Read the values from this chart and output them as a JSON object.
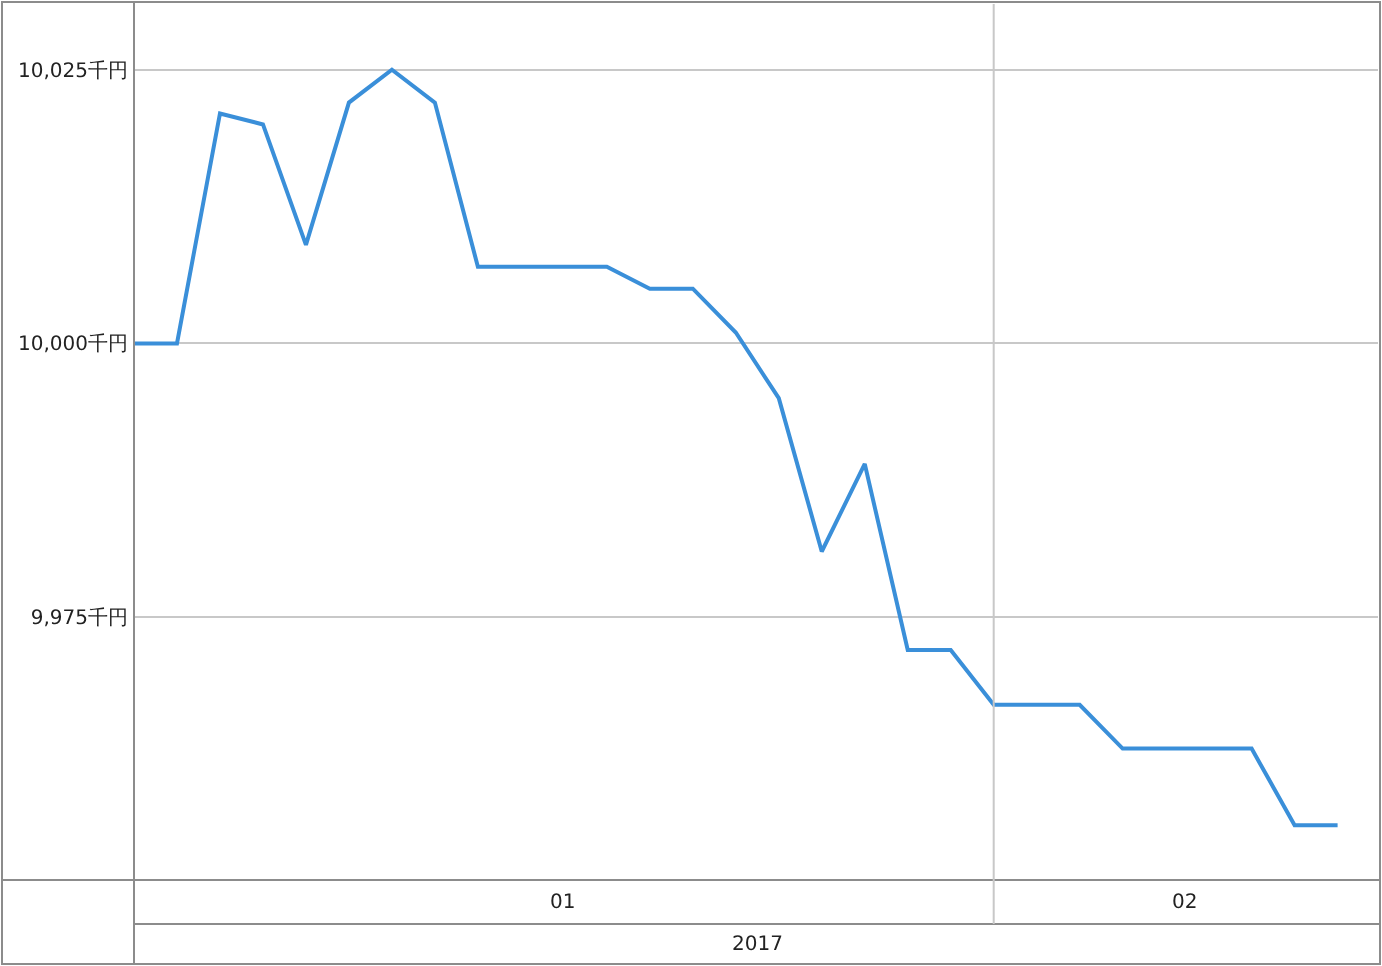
{
  "chart_data": {
    "type": "line",
    "categories": [
      null,
      null,
      null,
      null,
      null,
      null,
      null,
      null,
      null,
      null,
      null,
      null,
      null,
      null,
      null,
      null,
      null,
      null,
      null,
      null,
      null,
      null,
      null,
      null,
      null,
      null,
      null,
      null,
      null
    ],
    "series": [
      {
        "color": "#3a8fd9",
        "values": [
          10000,
          10000,
          10021,
          10020,
          10009,
          10022,
          10025,
          10022,
          10007,
          10007,
          10007,
          10007,
          10005,
          10005,
          10001,
          9995,
          9981,
          9989,
          9972,
          9972,
          9967,
          9967,
          9967,
          9963,
          9963,
          9963,
          9963,
          9956,
          9956
        ]
      }
    ],
    "ylim": [
      9951,
      10031
    ],
    "yticks": [
      {
        "value": 9975,
        "label": "9,975千円"
      },
      {
        "value": 10000,
        "label": "10,000千円"
      },
      {
        "value": 10025,
        "label": "10,025千円"
      }
    ],
    "xlabel": "2017",
    "annotations": [
      "01",
      "02"
    ],
    "grid": "y",
    "marker": "none",
    "line_style": "solid"
  }
}
